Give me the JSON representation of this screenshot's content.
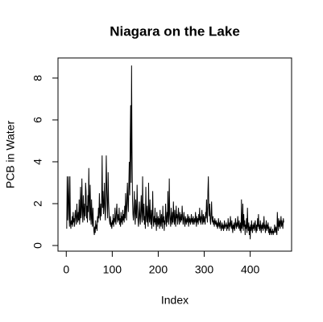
{
  "chart_data": {
    "type": "line",
    "title": "Niagara on the Lake",
    "x_label": "Index",
    "y_label": "PCB in Water",
    "color": "#000000",
    "xlim": [
      -18,
      490
    ],
    "xticks": [
      0,
      100,
      200,
      300,
      400
    ],
    "ylim": [
      -0.27,
      8.96
    ],
    "yticks": [
      0,
      2,
      4,
      6,
      8
    ],
    "values": [
      0.8,
      3.3,
      1.2,
      2.1,
      3.3,
      1.5,
      0.9,
      3.3,
      1.1,
      0.8,
      1.2,
      1.0,
      1.4,
      0.9,
      1.6,
      1.1,
      1.3,
      0.9,
      1.5,
      1.7,
      1.2,
      1.0,
      2.0,
      1.4,
      1.1,
      1.6,
      1.2,
      2.2,
      1.0,
      1.4,
      2.8,
      1.3,
      1.8,
      3.2,
      1.5,
      1.1,
      2.4,
      1.7,
      1.2,
      2.0,
      1.4,
      3.0,
      2.6,
      1.3,
      1.9,
      1.1,
      2.4,
      1.6,
      3.7,
      2.2,
      1.2,
      2.9,
      1.5,
      1.0,
      2.2,
      1.3,
      0.9,
      1.8,
      1.1,
      0.7,
      0.5,
      0.9,
      0.6,
      1.2,
      0.8,
      1.0,
      0.7,
      1.4,
      1.1,
      1.8,
      1.3,
      2.5,
      1.6,
      1.2,
      2.0,
      1.4,
      2.2,
      4.3,
      1.8,
      2.6,
      1.5,
      2.0,
      3.0,
      1.7,
      1.2,
      2.4,
      4.3,
      2.8,
      1.9,
      1.3,
      3.5,
      2.1,
      1.6,
      1.2,
      1.0,
      1.4,
      0.9,
      1.1,
      0.8,
      1.2,
      1.0,
      1.5,
      0.9,
      1.3,
      1.1,
      1.8,
      1.2,
      1.0,
      1.6,
      2.0,
      1.3,
      1.1,
      1.5,
      1.2,
      1.8,
      1.0,
      1.3,
      0.9,
      1.6,
      1.1,
      1.4,
      1.0,
      1.7,
      1.2,
      1.5,
      1.1,
      1.9,
      1.3,
      2.5,
      1.8,
      1.2,
      2.3,
      3.0,
      2.0,
      1.6,
      2.8,
      4.0,
      2.4,
      5.0,
      6.7,
      3.0,
      8.6,
      4.5,
      2.2,
      1.5,
      1.2,
      1.8,
      2.6,
      1.4,
      1.0,
      2.2,
      1.6,
      1.3,
      2.9,
      1.8,
      1.2,
      0.9,
      1.5,
      2.1,
      1.3,
      1.0,
      1.7,
      2.4,
      1.4,
      1.1,
      3.3,
      1.6,
      1.2,
      2.0,
      1.0,
      1.4,
      0.8,
      2.8,
      1.5,
      1.1,
      1.9,
      1.2,
      0.9,
      3.0,
      1.4,
      1.1,
      2.2,
      1.3,
      1.0,
      1.7,
      0.8,
      1.5,
      2.6,
      1.2,
      0.9,
      1.4,
      1.1,
      1.8,
      1.0,
      1.3,
      0.7,
      1.6,
      1.2,
      0.9,
      1.4,
      1.0,
      1.3,
      0.8,
      1.7,
      1.1,
      0.9,
      1.5,
      1.2,
      0.8,
      1.9,
      1.1,
      1.4,
      0.7,
      1.2,
      1.0,
      2.0,
      1.3,
      0.9,
      1.6,
      1.1,
      2.6,
      1.4,
      1.0,
      3.2,
      1.5,
      1.2,
      0.9,
      1.8,
      1.3,
      1.0,
      1.6,
      1.1,
      2.1,
      1.4,
      1.0,
      1.7,
      1.2,
      0.9,
      1.9,
      1.3,
      1.5,
      1.0,
      1.4,
      1.8,
      1.2,
      1.0,
      1.6,
      1.3,
      1.1,
      1.5,
      1.2,
      1.9,
      1.4,
      1.0,
      1.3,
      1.6,
      1.1,
      0.9,
      1.4,
      1.2,
      1.0,
      1.3,
      1.1,
      1.5,
      1.2,
      0.9,
      1.4,
      1.1,
      1.3,
      1.0,
      1.2,
      1.5,
      1.1,
      1.3,
      1.0,
      1.4,
      1.2,
      1.0,
      1.3,
      1.1,
      1.6,
      1.2,
      0.9,
      1.4,
      1.1,
      1.3,
      1.0,
      1.5,
      1.2,
      1.8,
      1.1,
      1.4,
      1.0,
      1.3,
      1.7,
      1.2,
      1.0,
      1.5,
      1.1,
      1.4,
      1.2,
      1.0,
      1.6,
      1.3,
      2.2,
      1.5,
      1.1,
      2.6,
      3.3,
      1.8,
      1.4,
      2.0,
      1.2,
      1.0,
      1.5,
      2.1,
      1.3,
      1.1,
      1.4,
      1.0,
      1.2,
      0.9,
      1.3,
      1.1,
      1.0,
      1.2,
      0.9,
      1.1,
      0.8,
      1.0,
      1.3,
      0.9,
      1.1,
      0.8,
      1.2,
      1.0,
      0.7,
      0.9,
      1.1,
      0.8,
      1.0,
      0.7,
      0.9,
      1.2,
      0.8,
      1.0,
      0.9,
      1.1,
      0.7,
      1.0,
      0.8,
      1.3,
      1.0,
      0.7,
      1.1,
      0.9,
      1.4,
      1.0,
      0.8,
      1.2,
      0.9,
      0.6,
      1.0,
      0.8,
      1.1,
      0.7,
      0.9,
      1.3,
      1.0,
      0.8,
      1.1,
      0.9,
      1.4,
      1.0,
      0.8,
      1.2,
      0.9,
      0.7,
      1.1,
      0.6,
      2.2,
      0.8,
      1.0,
      2.0,
      0.7,
      1.5,
      0.9,
      1.2,
      0.5,
      1.0,
      0.8,
      1.3,
      0.6,
      1.8,
      0.9,
      0.7,
      1.1,
      0.5,
      0.9,
      0.3,
      1.0,
      0.7,
      1.2,
      0.8,
      0.6,
      1.0,
      0.8,
      1.1,
      0.7,
      0.9,
      1.2,
      0.8,
      0.6,
      1.0,
      0.7,
      1.3,
      0.9,
      1.5,
      0.8,
      1.0,
      0.7,
      1.2,
      0.9,
      0.6,
      1.0,
      0.8,
      1.1,
      0.7,
      0.9,
      1.4,
      0.8,
      1.0,
      0.6,
      0.9,
      1.2,
      0.7,
      1.0,
      0.8,
      1.1,
      0.6,
      0.9,
      0.5,
      0.8,
      0.6,
      0.9,
      0.5,
      0.7,
      0.6,
      0.8,
      0.5,
      0.7,
      0.6,
      1.0,
      0.8,
      0.6,
      0.9,
      0.7,
      0.5,
      1.6,
      1.0,
      0.7,
      1.3,
      0.9,
      1.2,
      0.8,
      1.1,
      1.4,
      0.9,
      1.2,
      1.0,
      0.8,
      1.3,
      1.1
    ]
  }
}
